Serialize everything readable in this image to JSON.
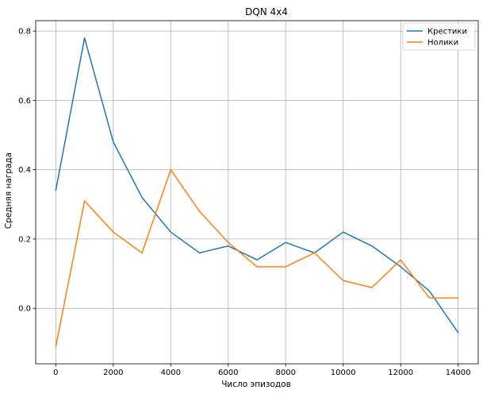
{
  "chart_data": {
    "type": "line",
    "title": "DQN 4x4",
    "xlabel": "Число эпизодов",
    "ylabel": "Средняя награда",
    "xlim": [
      -700,
      14700
    ],
    "ylim": [
      -0.16,
      0.83
    ],
    "xticks": [
      0,
      2000,
      4000,
      6000,
      8000,
      10000,
      12000,
      14000
    ],
    "xtick_labels": [
      "0",
      "2000",
      "4000",
      "6000",
      "8000",
      "10000",
      "12000",
      "14000"
    ],
    "yticks": [
      0.0,
      0.2,
      0.4,
      0.6,
      0.8
    ],
    "ytick_labels": [
      "0.0",
      "0.2",
      "0.4",
      "0.6",
      "0.8"
    ],
    "grid": true,
    "legend_position": "top-right",
    "x": [
      0,
      1000,
      2000,
      3000,
      4000,
      5000,
      6000,
      7000,
      8000,
      9000,
      10000,
      11000,
      12000,
      13000,
      14000
    ],
    "series": [
      {
        "name": "Крестики",
        "color": "#1f77b4",
        "values": [
          0.34,
          0.78,
          0.48,
          0.32,
          0.22,
          0.16,
          0.18,
          0.14,
          0.19,
          0.16,
          0.22,
          0.18,
          0.12,
          0.05,
          -0.07
        ]
      },
      {
        "name": "Нолики",
        "color": "#ff7f0e",
        "values": [
          -0.11,
          0.31,
          0.22,
          0.16,
          0.4,
          0.28,
          0.19,
          0.12,
          0.12,
          0.16,
          0.08,
          0.06,
          0.14,
          0.03,
          0.03
        ]
      }
    ]
  }
}
